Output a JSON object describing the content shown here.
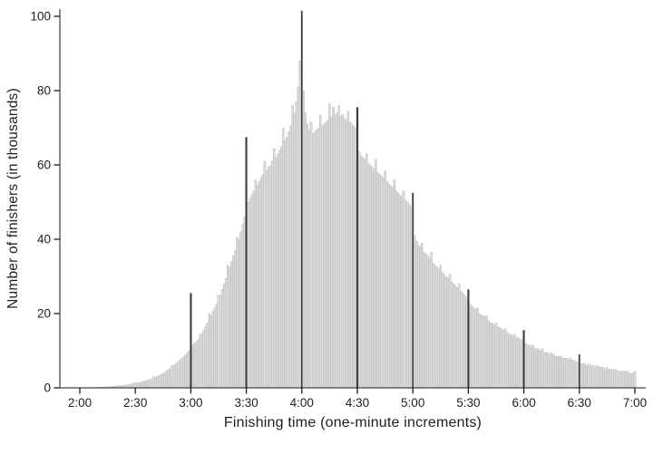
{
  "chart_data": {
    "type": "bar",
    "title": "",
    "xlabel": "Finishing time (one-minute increments)",
    "ylabel": "Number of finishers (in thousands)",
    "x_unit": "minutes",
    "x_start_minute": 120,
    "x_end_minute": 420,
    "tick_minutes": [
      120,
      150,
      180,
      210,
      240,
      270,
      300,
      330,
      360,
      390,
      420
    ],
    "tick_labels": [
      "2:00",
      "2:30",
      "3:00",
      "3:30",
      "4:00",
      "4:30",
      "5:00",
      "5:30",
      "6:00",
      "6:30",
      "7:00"
    ],
    "y_ticks": [
      0,
      20,
      40,
      60,
      80,
      100
    ],
    "ylim": [
      0,
      105
    ],
    "grid": false,
    "legend": "none",
    "highlight_minutes": [
      180,
      210,
      240,
      270,
      300,
      330,
      360,
      390
    ],
    "values": [
      0.05,
      0.05,
      0.05,
      0.05,
      0.05,
      0.1,
      0.1,
      0.1,
      0.1,
      0.1,
      0.15,
      0.15,
      0.2,
      0.2,
      0.25,
      0.3,
      0.3,
      0.35,
      0.4,
      0.45,
      0.5,
      0.55,
      0.6,
      0.65,
      0.7,
      0.8,
      0.85,
      0.9,
      1.0,
      1.1,
      1.4,
      1.3,
      1.4,
      1.5,
      1.6,
      1.8,
      1.9,
      2.1,
      2.3,
      2.5,
      3.0,
      2.9,
      3.1,
      3.4,
      3.6,
      3.9,
      4.2,
      4.5,
      4.9,
      5.3,
      6.0,
      6.1,
      6.5,
      7.0,
      7.4,
      7.9,
      8.3,
      8.8,
      9.4,
      10.0,
      25.5,
      11.5,
      12.0,
      12.5,
      13.0,
      14.5,
      14.5,
      15.5,
      16.5,
      17.5,
      20.0,
      19.5,
      20.5,
      21.5,
      22.5,
      25.0,
      25.0,
      26.5,
      28.0,
      29.5,
      33.0,
      32.5,
      34.0,
      35.5,
      37.0,
      40.5,
      40.0,
      42.0,
      44.0,
      46.0,
      67.5,
      50.0,
      51.0,
      52.0,
      53.0,
      56.0,
      54.5,
      55.5,
      56.5,
      57.5,
      61.0,
      58.5,
      59.5,
      60.0,
      61.0,
      64.5,
      62.0,
      63.0,
      64.0,
      65.0,
      70.0,
      66.5,
      67.5,
      69.0,
      70.5,
      76.0,
      74.0,
      77.0,
      81.0,
      88.0,
      101.5,
      80.0,
      74.0,
      71.0,
      69.5,
      71.5,
      68.5,
      69.0,
      69.5,
      70.0,
      73.5,
      70.5,
      71.0,
      71.5,
      72.0,
      76.5,
      73.0,
      75.5,
      73.5,
      74.0,
      76.0,
      73.0,
      73.5,
      72.5,
      72.0,
      74.5,
      71.5,
      71.0,
      70.5,
      70.0,
      75.5,
      63.5,
      62.5,
      62.0,
      61.5,
      63.0,
      60.5,
      60.0,
      59.5,
      59.0,
      61.5,
      58.0,
      57.5,
      57.0,
      56.5,
      58.5,
      55.5,
      55.0,
      54.5,
      54.0,
      56.0,
      53.0,
      52.5,
      52.0,
      51.5,
      53.0,
      50.5,
      50.0,
      49.5,
      49.0,
      52.5,
      41.0,
      39.5,
      38.5,
      38.0,
      39.0,
      36.5,
      36.0,
      35.5,
      35.0,
      36.5,
      33.5,
      33.0,
      32.5,
      32.0,
      33.0,
      31.0,
      30.5,
      30.0,
      29.5,
      30.5,
      28.5,
      28.0,
      27.5,
      27.0,
      28.0,
      26.0,
      25.5,
      25.0,
      24.5,
      26.5,
      22.5,
      22.0,
      21.5,
      21.0,
      21.5,
      20.0,
      19.5,
      19.5,
      19.0,
      19.5,
      18.0,
      17.5,
      17.5,
      17.0,
      17.5,
      16.5,
      16.0,
      16.0,
      15.5,
      16.0,
      15.0,
      14.5,
      14.5,
      14.0,
      14.5,
      13.5,
      13.5,
      13.0,
      13.0,
      15.5,
      12.0,
      11.5,
      11.5,
      11.0,
      11.5,
      10.5,
      10.5,
      10.5,
      10.0,
      10.5,
      9.5,
      9.5,
      9.5,
      9.0,
      9.5,
      9.0,
      8.5,
      8.5,
      8.5,
      8.5,
      8.0,
      8.0,
      8.0,
      7.5,
      8.0,
      7.5,
      7.5,
      7.0,
      7.0,
      9.0,
      6.5,
      6.5,
      6.5,
      6.0,
      6.5,
      6.0,
      6.0,
      6.0,
      5.5,
      6.0,
      5.5,
      5.5,
      5.5,
      5.0,
      5.5,
      5.0,
      5.0,
      5.0,
      5.0,
      5.0,
      4.5,
      4.5,
      4.5,
      4.5,
      4.5,
      4.5,
      4.0,
      4.0,
      4.0,
      4.5
    ],
    "bar_color": "#d9d9d9",
    "bar_edge_color": "#b4b4b4",
    "highlight_color": "#3d3d3d",
    "axis_color": "#1a1a1a",
    "text_color": "#212121"
  }
}
